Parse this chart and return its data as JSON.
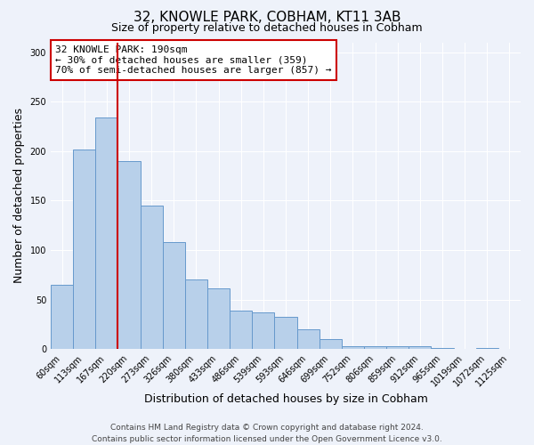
{
  "title": "32, KNOWLE PARK, COBHAM, KT11 3AB",
  "subtitle": "Size of property relative to detached houses in Cobham",
  "xlabel": "Distribution of detached houses by size in Cobham",
  "ylabel": "Number of detached properties",
  "categories": [
    "60sqm",
    "113sqm",
    "167sqm",
    "220sqm",
    "273sqm",
    "326sqm",
    "380sqm",
    "433sqm",
    "486sqm",
    "539sqm",
    "593sqm",
    "646sqm",
    "699sqm",
    "752sqm",
    "806sqm",
    "859sqm",
    "912sqm",
    "965sqm",
    "1019sqm",
    "1072sqm",
    "1125sqm"
  ],
  "values": [
    65,
    202,
    234,
    190,
    145,
    108,
    70,
    61,
    39,
    37,
    33,
    20,
    10,
    3,
    3,
    3,
    3,
    1,
    0,
    1,
    0
  ],
  "bar_color": "#b8d0ea",
  "bar_edge_color": "#6699cc",
  "annotation_title": "32 KNOWLE PARK: 190sqm",
  "annotation_line1": "← 30% of detached houses are smaller (359)",
  "annotation_line2": "70% of semi-detached houses are larger (857) →",
  "annotation_box_color": "#ffffff",
  "annotation_box_edge": "#cc0000",
  "red_line_x": 2.5,
  "ylim": [
    0,
    310
  ],
  "yticks": [
    0,
    50,
    100,
    150,
    200,
    250,
    300
  ],
  "footer1": "Contains HM Land Registry data © Crown copyright and database right 2024.",
  "footer2": "Contains public sector information licensed under the Open Government Licence v3.0.",
  "background_color": "#eef2fa",
  "plot_bg_color": "#eef2fa",
  "grid_color": "#ffffff",
  "title_fontsize": 11,
  "subtitle_fontsize": 9,
  "axis_label_fontsize": 9,
  "tick_fontsize": 7,
  "footer_fontsize": 6.5,
  "annotation_fontsize": 8
}
